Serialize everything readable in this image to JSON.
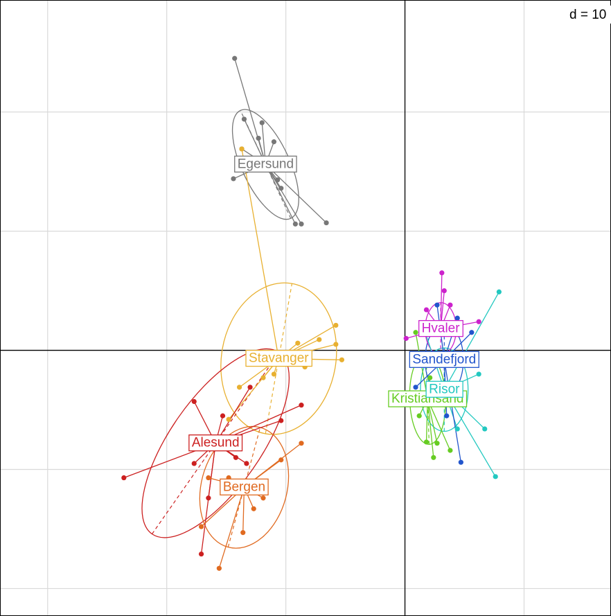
{
  "chart_data": {
    "type": "scatter",
    "scale_label": "d = 10",
    "xlim": [
      -34,
      17.3
    ],
    "ylim": [
      -22.3,
      29.4
    ],
    "xticks": [
      -30,
      -20,
      -10,
      0,
      10
    ],
    "yticks": [
      -20,
      -10,
      0,
      10,
      20
    ],
    "grid": true,
    "series": [
      {
        "name": "Egersund",
        "color": "#777777",
        "center": [
          -11.7,
          15.6
        ],
        "ellipse": {
          "axes": [
            5.0,
            2.0
          ],
          "angle": 115
        },
        "x": [
          -14.3,
          -13.5,
          -12.3,
          -11.0,
          -13.7,
          -14.4,
          -10.7,
          -10.4,
          -9.2,
          -8.7,
          -6.6,
          -12.0
        ],
        "y": [
          24.5,
          19.4,
          17.8,
          17.5,
          16.9,
          14.4,
          14.3,
          13.6,
          10.6,
          10.6,
          10.7,
          19.1
        ]
      },
      {
        "name": "Stavanger",
        "color": "#e8b030",
        "center": [
          -10.6,
          -0.7
        ],
        "ellipse": {
          "axes": [
            6.4,
            4.8
          ],
          "angle": 80
        },
        "x": [
          -13.7,
          -5.8,
          -5.8,
          -5.3,
          -7.2,
          -9.0,
          -11.0,
          -11.9,
          -13.9,
          -14.8,
          -8.4,
          -9.5
        ],
        "y": [
          16.9,
          2.1,
          0.5,
          -0.8,
          0.9,
          0.6,
          -2.0,
          -2.3,
          -3.1,
          -5.8,
          -1.4,
          -1.1
        ]
      },
      {
        "name": "Alesund",
        "color": "#cc2020",
        "center": [
          -15.9,
          -7.8
        ],
        "ellipse": {
          "axes": [
            9.3,
            3.8
          ],
          "angle": 55
        },
        "x": [
          -23.6,
          -8.7,
          -10.4,
          -17.1,
          -16.5,
          -14.2,
          -13.3,
          -15.3,
          -17.7,
          -17.7,
          -13.0
        ],
        "y": [
          -10.7,
          -4.6,
          -5.9,
          -17.1,
          -12.4,
          -9.0,
          -9.5,
          -5.5,
          -4.3,
          -9.5,
          -3.1
        ]
      },
      {
        "name": "Bergen",
        "color": "#e06a20",
        "center": [
          -13.5,
          -11.5
        ],
        "ellipse": {
          "axes": [
            5.2,
            3.6
          ],
          "angle": 75
        },
        "x": [
          -8.7,
          -10.4,
          -15.6,
          -13.6,
          -12.7,
          -11.9,
          -16.5,
          -14.8,
          -17.1
        ],
        "y": [
          -7.8,
          -9.2,
          -18.3,
          -15.3,
          -13.3,
          -12.4,
          -10.7,
          -10.7,
          -14.8
        ]
      },
      {
        "name": "Kristiansand",
        "color": "#66cc22",
        "center": [
          1.9,
          -4.1
        ],
        "ellipse": {
          "axes": [
            3.8,
            1.5
          ],
          "angle": 92
        },
        "x": [
          2.4,
          2.7,
          1.2,
          1.8,
          3.8,
          2.1,
          0.9
        ],
        "y": [
          -9.0,
          -7.8,
          -5.5,
          -7.7,
          -8.4,
          -2.3,
          1.5
        ]
      },
      {
        "name": "Risor",
        "color": "#22c8c0",
        "center": [
          3.3,
          -3.3
        ],
        "ellipse": {
          "axes": [
            3.5,
            2.0
          ],
          "angle": 90
        },
        "x": [
          7.9,
          7.6,
          6.7,
          6.2,
          4.4,
          1.5
        ],
        "y": [
          4.9,
          -10.6,
          -6.6,
          -2.0,
          -6.6,
          2.1
        ]
      },
      {
        "name": "Sandefjord",
        "color": "#2255cc",
        "center": [
          3.3,
          -0.8
        ],
        "ellipse": {
          "axes": [
            3.0,
            1.6
          ],
          "angle": 90
        },
        "x": [
          2.7,
          4.4,
          4.7,
          2.1,
          3.5,
          5.6,
          0.9
        ],
        "y": [
          3.8,
          2.7,
          -9.4,
          -0.8,
          -5.5,
          1.5,
          -3.1
        ]
      },
      {
        "name": "Hvaler",
        "color": "#cc22cc",
        "center": [
          3.0,
          1.8
        ],
        "ellipse": {
          "axes": [
            2.2,
            1.3
          ],
          "angle": 90
        },
        "x": [
          3.1,
          3.3,
          1.8,
          0.1,
          3.8,
          6.2
        ],
        "y": [
          6.5,
          5.0,
          3.4,
          1.0,
          3.8,
          2.4
        ]
      }
    ]
  }
}
